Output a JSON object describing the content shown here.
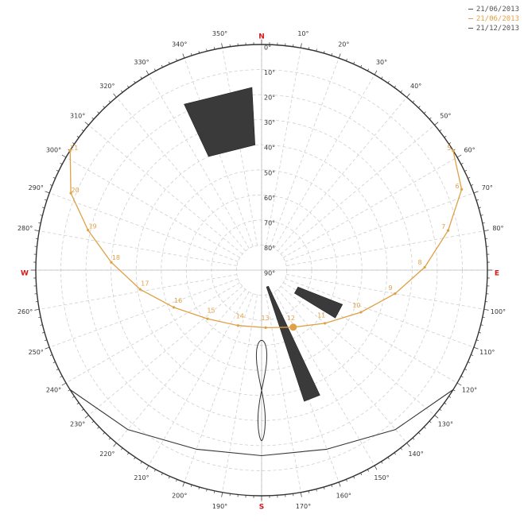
{
  "legend": [
    {
      "label": "21/06/2013",
      "color": "#555555"
    },
    {
      "label": "21/06/2013",
      "color": "#e0a045"
    },
    {
      "label": "21/12/2013",
      "color": "#555555"
    }
  ],
  "cardinals": {
    "N": "N",
    "E": "E",
    "S": "S",
    "W": "W"
  },
  "azimuth_labels": [
    "10°",
    "20°",
    "30°",
    "40°",
    "50°",
    "60°",
    "70°",
    "80°",
    "100°",
    "110°",
    "120°",
    "130°",
    "140°",
    "150°",
    "160°",
    "170°",
    "190°",
    "200°",
    "210°",
    "220°",
    "230°",
    "240°",
    "250°",
    "260°",
    "280°",
    "290°",
    "300°",
    "310°",
    "320°",
    "330°",
    "340°",
    "350°"
  ],
  "elevation_labels": [
    "0°",
    "10°",
    "20°",
    "30°",
    "40°",
    "50°",
    "60°",
    "70°",
    "80°",
    "90°"
  ],
  "colors": {
    "sun_path": "#e0a045",
    "winter_path": "#333333",
    "obstacle": "#3a3a3a",
    "grid": "#cfcfcf",
    "outer_circle": "#333333",
    "cardinal": "#d01a1a"
  },
  "sun_path_june": {
    "hours": [
      {
        "label": "21",
        "az": 302,
        "alt": 0
      },
      {
        "label": "20",
        "az": 292,
        "alt": 8
      },
      {
        "label": "19",
        "az": 283,
        "alt": 19
      },
      {
        "label": "18",
        "az": 273,
        "alt": 30
      },
      {
        "label": "17",
        "az": 261,
        "alt": 41
      },
      {
        "label": "16",
        "az": 247,
        "alt": 52
      },
      {
        "label": "15",
        "az": 228,
        "alt": 61
      },
      {
        "label": "14",
        "az": 203,
        "alt": 66
      },
      {
        "label": "13",
        "az": 176,
        "alt": 67
      },
      {
        "label": "12",
        "az": 151,
        "alt": 64
      },
      {
        "label": "11",
        "az": 130,
        "alt": 57
      },
      {
        "label": "10",
        "az": 113,
        "alt": 47
      },
      {
        "label": "9",
        "az": 100,
        "alt": 36
      },
      {
        "label": "8",
        "az": 89,
        "alt": 25
      },
      {
        "label": "7",
        "az": 78,
        "alt": 14
      },
      {
        "label": "6",
        "az": 68,
        "alt": 4
      },
      {
        "label": "5",
        "az": 58,
        "alt": 0
      }
    ],
    "current_sun": {
      "az": 151,
      "alt": 64
    }
  },
  "winter_path": {
    "hours": [
      {
        "az": 238,
        "alt": 0
      },
      {
        "az": 220,
        "alt": 7
      },
      {
        "az": 200,
        "alt": 14
      },
      {
        "az": 180,
        "alt": 16
      },
      {
        "az": 160,
        "alt": 14
      },
      {
        "az": 140,
        "alt": 7
      },
      {
        "az": 122,
        "alt": 0
      }
    ]
  },
  "analemma": {
    "center_az": 180,
    "alt_top": 62,
    "alt_bottom": 22,
    "half_width_deg": 4
  },
  "obstacles": [
    {
      "points": [
        [
          335,
          17
        ],
        [
          357,
          17
        ],
        [
          357,
          40
        ],
        [
          335,
          40
        ]
      ]
    },
    {
      "points": [
        [
          155,
          35
        ],
        [
          162,
          35
        ],
        [
          164,
          83
        ],
        [
          157,
          83
        ]
      ]
    },
    {
      "points": [
        [
          113,
          55
        ],
        [
          123,
          55
        ],
        [
          125,
          74
        ],
        [
          115,
          74
        ]
      ]
    }
  ]
}
